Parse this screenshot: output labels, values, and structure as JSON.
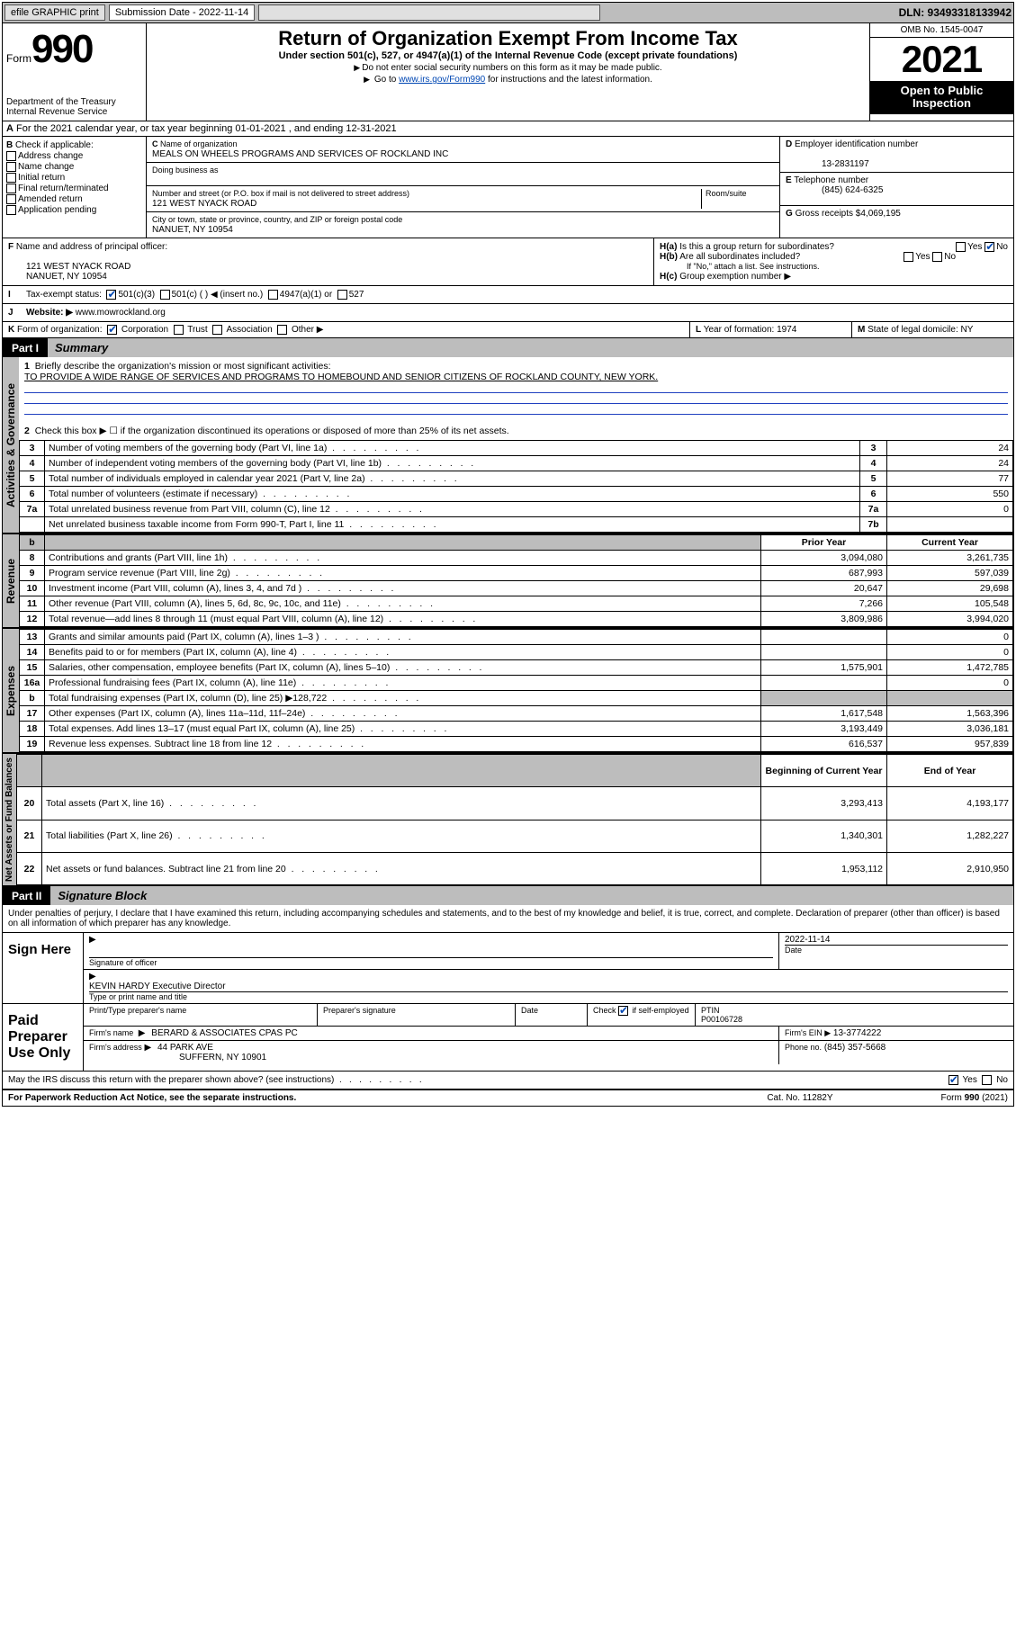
{
  "topbar": {
    "efile": "efile GRAPHIC print",
    "subdate_label": "Submission Date - 2022-11-14",
    "dln": "DLN: 93493318133942"
  },
  "header": {
    "form_word": "Form",
    "form_num": "990",
    "dept": "Department of the Treasury\nInternal Revenue Service",
    "title": "Return of Organization Exempt From Income Tax",
    "sub": "Under section 501(c), 527, or 4947(a)(1) of the Internal Revenue Code (except private foundations)",
    "note1": "Do not enter social security numbers on this form as it may be made public.",
    "note2_pre": "Go to ",
    "note2_link": "www.irs.gov/Form990",
    "note2_post": " for instructions and the latest information.",
    "omb": "OMB No. 1545-0047",
    "year": "2021",
    "public": "Open to Public Inspection"
  },
  "row_a": {
    "text": "For the 2021 calendar year, or tax year beginning 01-01-2021   , and ending 12-31-2021",
    "prefix": "A"
  },
  "section_b": {
    "label": "Check if applicable:",
    "items": [
      "Address change",
      "Name change",
      "Initial return",
      "Final return/terminated",
      "Amended return",
      "Application pending"
    ],
    "prefix": "B"
  },
  "section_c": {
    "name_label": "Name of organization",
    "name": "MEALS ON WHEELS PROGRAMS AND SERVICES OF ROCKLAND INC",
    "dba_label": "Doing business as",
    "street_label": "Number and street (or P.O. box if mail is not delivered to street address)",
    "room_label": "Room/suite",
    "street": "121 WEST NYACK ROAD",
    "city_label": "City or town, state or province, country, and ZIP or foreign postal code",
    "city": "NANUET, NY  10954",
    "prefix": "C"
  },
  "section_d": {
    "label": "Employer identification number",
    "value": "13-2831197",
    "prefix": "D"
  },
  "section_e": {
    "label": "Telephone number",
    "value": "(845) 624-6325",
    "prefix": "E"
  },
  "section_g": {
    "label": "Gross receipts $",
    "value": "4,069,195",
    "prefix": "G"
  },
  "section_f": {
    "label": "Name and address of principal officer:",
    "addr1": "121 WEST NYACK ROAD",
    "addr2": "NANUET, NY  10954",
    "prefix": "F"
  },
  "section_h": {
    "ha": "Is this a group return for subordinates?",
    "hb": "Are all subordinates included?",
    "hb_note": "If \"No,\" attach a list. See instructions.",
    "hc": "Group exemption number ▶",
    "yes": "Yes",
    "no": "No"
  },
  "row_i": {
    "label": "Tax-exempt status:",
    "opts": [
      "501(c)(3)",
      "501(c) (   ) ◀ (insert no.)",
      "4947(a)(1) or",
      "527"
    ],
    "prefix": "I"
  },
  "row_j": {
    "label": "Website: ▶",
    "value": "www.mowrockland.org",
    "prefix": "J"
  },
  "row_k": {
    "label": "Form of organization:",
    "opts": [
      "Corporation",
      "Trust",
      "Association",
      "Other ▶"
    ],
    "prefix": "K"
  },
  "row_l": {
    "label": "Year of formation:",
    "value": "1974",
    "prefix": "L"
  },
  "row_m": {
    "label": "State of legal domicile:",
    "value": "NY",
    "prefix": "M"
  },
  "part1": {
    "num": "Part I",
    "title": "Summary",
    "q1_label": "Briefly describe the organization's mission or most significant activities:",
    "q1_text": "TO PROVIDE A WIDE RANGE OF SERVICES AND PROGRAMS TO HOMEBOUND AND SENIOR CITIZENS OF ROCKLAND COUNTY, NEW YORK.",
    "q2": "Check this box ▶ ☐  if the organization discontinued its operations or disposed of more than 25% of its net assets.",
    "governance_label": "Activities & Governance",
    "revenue_label": "Revenue",
    "expenses_label": "Expenses",
    "netassets_label": "Net Assets or Fund Balances",
    "prior_year": "Prior Year",
    "current_year": "Current Year",
    "beg_year": "Beginning of Current Year",
    "end_year": "End of Year",
    "rows_top": [
      {
        "n": "3",
        "desc": "Number of voting members of the governing body (Part VI, line 1a)",
        "box": "3",
        "val": "24"
      },
      {
        "n": "4",
        "desc": "Number of independent voting members of the governing body (Part VI, line 1b)",
        "box": "4",
        "val": "24"
      },
      {
        "n": "5",
        "desc": "Total number of individuals employed in calendar year 2021 (Part V, line 2a)",
        "box": "5",
        "val": "77"
      },
      {
        "n": "6",
        "desc": "Total number of volunteers (estimate if necessary)",
        "box": "6",
        "val": "550"
      },
      {
        "n": "7a",
        "desc": "Total unrelated business revenue from Part VIII, column (C), line 12",
        "box": "7a",
        "val": "0"
      },
      {
        "n": "",
        "desc": "Net unrelated business taxable income from Form 990-T, Part I, line 11",
        "box": "7b",
        "val": ""
      }
    ],
    "rows_rev": [
      {
        "n": "8",
        "desc": "Contributions and grants (Part VIII, line 1h)",
        "py": "3,094,080",
        "cy": "3,261,735"
      },
      {
        "n": "9",
        "desc": "Program service revenue (Part VIII, line 2g)",
        "py": "687,993",
        "cy": "597,039"
      },
      {
        "n": "10",
        "desc": "Investment income (Part VIII, column (A), lines 3, 4, and 7d )",
        "py": "20,647",
        "cy": "29,698"
      },
      {
        "n": "11",
        "desc": "Other revenue (Part VIII, column (A), lines 5, 6d, 8c, 9c, 10c, and 11e)",
        "py": "7,266",
        "cy": "105,548"
      },
      {
        "n": "12",
        "desc": "Total revenue—add lines 8 through 11 (must equal Part VIII, column (A), line 12)",
        "py": "3,809,986",
        "cy": "3,994,020"
      }
    ],
    "rows_exp": [
      {
        "n": "13",
        "desc": "Grants and similar amounts paid (Part IX, column (A), lines 1–3 )",
        "py": "",
        "cy": "0"
      },
      {
        "n": "14",
        "desc": "Benefits paid to or for members (Part IX, column (A), line 4)",
        "py": "",
        "cy": "0"
      },
      {
        "n": "15",
        "desc": "Salaries, other compensation, employee benefits (Part IX, column (A), lines 5–10)",
        "py": "1,575,901",
        "cy": "1,472,785"
      },
      {
        "n": "16a",
        "desc": "Professional fundraising fees (Part IX, column (A), line 11e)",
        "py": "",
        "cy": "0"
      },
      {
        "n": "b",
        "desc": "Total fundraising expenses (Part IX, column (D), line 25) ▶128,722",
        "py": "shade",
        "cy": "shade"
      },
      {
        "n": "17",
        "desc": "Other expenses (Part IX, column (A), lines 11a–11d, 11f–24e)",
        "py": "1,617,548",
        "cy": "1,563,396"
      },
      {
        "n": "18",
        "desc": "Total expenses. Add lines 13–17 (must equal Part IX, column (A), line 25)",
        "py": "3,193,449",
        "cy": "3,036,181"
      },
      {
        "n": "19",
        "desc": "Revenue less expenses. Subtract line 18 from line 12",
        "py": "616,537",
        "cy": "957,839"
      }
    ],
    "rows_net": [
      {
        "n": "20",
        "desc": "Total assets (Part X, line 16)",
        "py": "3,293,413",
        "cy": "4,193,177"
      },
      {
        "n": "21",
        "desc": "Total liabilities (Part X, line 26)",
        "py": "1,340,301",
        "cy": "1,282,227"
      },
      {
        "n": "22",
        "desc": "Net assets or fund balances. Subtract line 21 from line 20",
        "py": "1,953,112",
        "cy": "2,910,950"
      }
    ]
  },
  "part2": {
    "num": "Part II",
    "title": "Signature Block",
    "decl": "Under penalties of perjury, I declare that I have examined this return, including accompanying schedules and statements, and to the best of my knowledge and belief, it is true, correct, and complete. Declaration of preparer (other than officer) is based on all information of which preparer has any knowledge.",
    "sign_here": "Sign Here",
    "sig_officer": "Signature of officer",
    "date": "Date",
    "date_val": "2022-11-14",
    "name_title": "KEVIN HARDY  Executive Director",
    "name_title_label": "Type or print name and title",
    "paid_prep": "Paid Preparer Use Only",
    "pt_name": "Print/Type preparer's name",
    "prep_sig": "Preparer's signature",
    "check_if": "Check",
    "self_emp": "if self-employed",
    "ptin_label": "PTIN",
    "ptin": "P00106728",
    "firm_name_label": "Firm's name",
    "firm_name": "BERARD & ASSOCIATES CPAS PC",
    "firm_ein_label": "Firm's EIN ▶",
    "firm_ein": "13-3774222",
    "firm_addr_label": "Firm's address",
    "firm_addr1": "44 PARK AVE",
    "firm_addr2": "SUFFERN, NY  10901",
    "phone_label": "Phone no.",
    "phone": "(845) 357-5668",
    "discuss": "May the IRS discuss this return with the preparer shown above? (see instructions)",
    "yes": "Yes",
    "no": "No"
  },
  "footer": {
    "left": "For Paperwork Reduction Act Notice, see the separate instructions.",
    "mid": "Cat. No. 11282Y",
    "right": "Form 990 (2021)"
  }
}
